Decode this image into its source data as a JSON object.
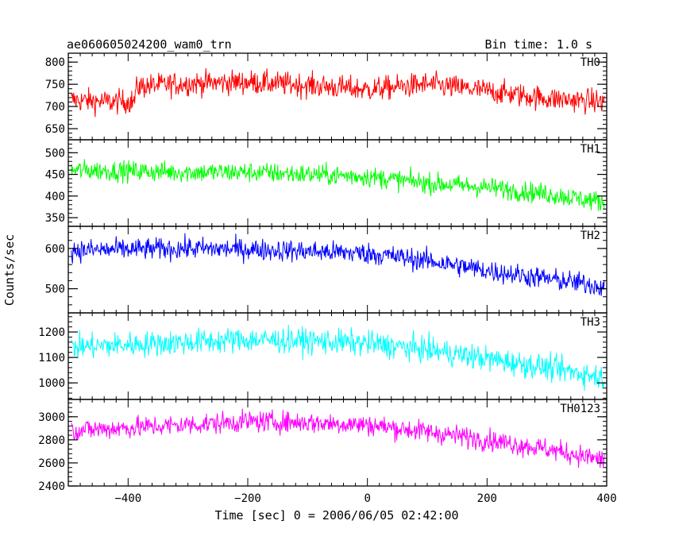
{
  "header": {
    "obs_id": "ae060605024200_wam0_trn",
    "bin_time": "Bin time: 1.0 s"
  },
  "chart_data": {
    "type": "line",
    "title": "ae060605024200_wam0_trn",
    "xlabel": "Time [sec] 0 = 2006/06/05 02:42:00",
    "ylabel": "Counts/sec",
    "xlim": [
      -500,
      400
    ],
    "x_ticks": [
      -400,
      -200,
      0,
      200,
      400
    ],
    "x_tick_labels": [
      "−400",
      "−200",
      "0",
      "200",
      "400"
    ],
    "panels": [
      {
        "name": "TH0",
        "color": "#ff0000",
        "ylim": [
          625,
          820
        ],
        "y_ticks": [
          650,
          700,
          750,
          800
        ],
        "trend_x": [
          -500,
          -430,
          -390,
          -385,
          -300,
          -200,
          -100,
          0,
          100,
          200,
          300,
          400
        ],
        "trend_y": [
          715,
          710,
          712,
          745,
          752,
          755,
          748,
          738,
          750,
          735,
          718,
          710
        ],
        "noise_amp": 38
      },
      {
        "name": "TH1",
        "color": "#00ff00",
        "ylim": [
          330,
          530
        ],
        "y_ticks": [
          350,
          400,
          450,
          500
        ],
        "trend_x": [
          -500,
          -300,
          -200,
          -100,
          0,
          100,
          200,
          300,
          400
        ],
        "trend_y": [
          460,
          455,
          455,
          450,
          445,
          430,
          420,
          405,
          385
        ],
        "noise_amp": 33
      },
      {
        "name": "TH2",
        "color": "#0000ff",
        "ylim": [
          440,
          655
        ],
        "y_ticks": [
          500,
          600
        ],
        "trend_x": [
          -500,
          -300,
          -200,
          -100,
          0,
          100,
          200,
          300,
          400
        ],
        "trend_y": [
          595,
          600,
          598,
          593,
          588,
          570,
          545,
          525,
          505
        ],
        "noise_amp": 38
      },
      {
        "name": "TH3",
        "color": "#00ffff",
        "ylim": [
          935,
          1275
        ],
        "y_ticks": [
          1000,
          1100,
          1200
        ],
        "trend_x": [
          -500,
          -300,
          -200,
          -100,
          0,
          100,
          200,
          300,
          400
        ],
        "trend_y": [
          1140,
          1160,
          1170,
          1165,
          1155,
          1130,
          1095,
          1060,
          1020
        ],
        "noise_amp": 70
      },
      {
        "name": "TH0123",
        "color": "#ff00ff",
        "ylim": [
          2400,
          3150
        ],
        "y_ticks": [
          2400,
          2600,
          2800,
          3000
        ],
        "trend_x": [
          -500,
          -300,
          -200,
          -100,
          0,
          100,
          200,
          300,
          400
        ],
        "trend_y": [
          2880,
          2930,
          2960,
          2950,
          2930,
          2870,
          2800,
          2720,
          2620
        ],
        "noise_amp": 130
      }
    ]
  }
}
